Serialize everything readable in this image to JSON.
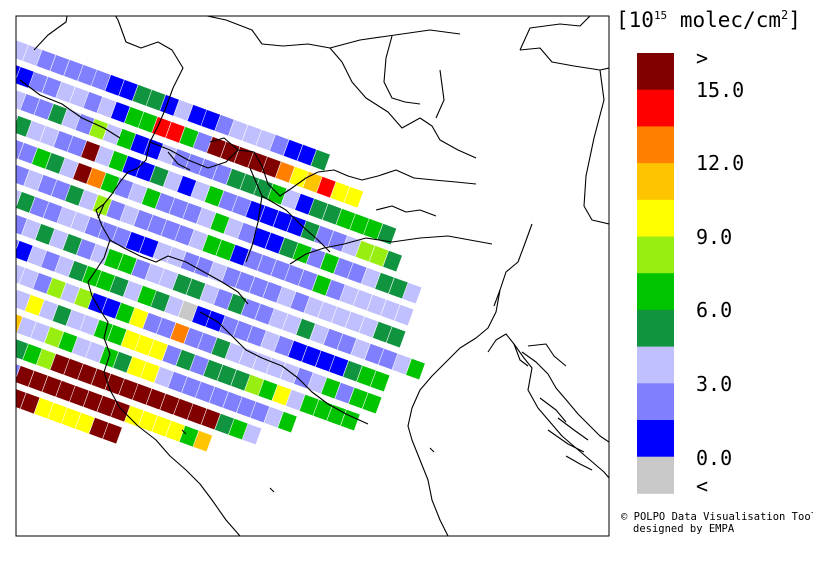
{
  "legend": {
    "title_prefix": "[10",
    "title_exp": "15",
    "title_unit": " molec/cm",
    "title_sq": "2",
    "title_suffix": "]",
    "over_symbol": ">",
    "under_symbol": "<",
    "tick_labels": [
      "15.0",
      "12.0",
      "9.0",
      "6.0",
      "3.0",
      "0.0"
    ],
    "classes": [
      {
        "label": ">",
        "color": "#800000"
      },
      {
        "label": "13.5–15.0",
        "color": "#ff0000"
      },
      {
        "label": "12.0–13.5",
        "color": "#ff8000"
      },
      {
        "label": "10.5–12.0",
        "color": "#ffc400"
      },
      {
        "label": "9.0–10.5",
        "color": "#ffff00"
      },
      {
        "label": "7.5–9.0",
        "color": "#99ee11"
      },
      {
        "label": "6.0–7.5",
        "color": "#00c400"
      },
      {
        "label": "4.5–6.0",
        "color": "#119440"
      },
      {
        "label": "3.0–4.5",
        "color": "#c0c0ff"
      },
      {
        "label": "1.5–3.0",
        "color": "#8080ff"
      },
      {
        "label": "0.0–1.5",
        "color": "#0000ff"
      },
      {
        "label": "<",
        "color": "#c8c8c8"
      }
    ]
  },
  "credit": {
    "line1": "© POLPO Data Visualisation Tool",
    "line2": "designed by EMPA"
  },
  "swath": {
    "color_codes": {
      "D": "#800000",
      "R": "#ff0000",
      "O": "#ff8000",
      "Y": "#ffc400",
      "L": "#ffff00",
      "G": "#99ee11",
      "g": "#00c400",
      "d": "#119440",
      "l": "#c0c0ff",
      "m": "#8080ff",
      "b": "#0000ff",
      "x": "#c8c8c8"
    },
    "rows": [
      "gdlmllmmmmmbbddblbbmlllmbbd",
      "xxmmbbmmllmlbggRRgmDDDDDOLYRLL",
      "mmbmmlmmdlmGlgbblmmmmdddglbddgggd",
      "lmbmbldllmmDlgbbdlblgmmbbbbdmmlGGd",
      "bmmbmlmmgdlDOgmlgmmmlglmbbdgmgmmlddl",
      "bbmlmxlmlmmdlGmlmmmmlggbmmmmmgmlllll",
      "lmbbmldldmmllmmmbbllmmlmmmmlmllllldd",
      "mbbmllbbmldldmlggmllddlmdmmlldlmmlmmlg",
      "bbmdlbmdmblmldggdlgdlxbbmmmlmbbbbdgg",
      "mbbmmlmmlllmGlGbbgLmmOmmdlllllmlgmgg",
      "bmmmmmlmmmlLldllggLLLmdmdddGgLlgggg",
      "llllmlmdgOYllGgllgdLLlmmmmmmmlg",
      "lmmmmmdmdlmdgGDDDDDDDDDDDDdgl",
      "lmlllmlddgdmDDDDDDDDLLLLgY",
      "lmllllmlldglDDLLLLDD"
    ]
  }
}
